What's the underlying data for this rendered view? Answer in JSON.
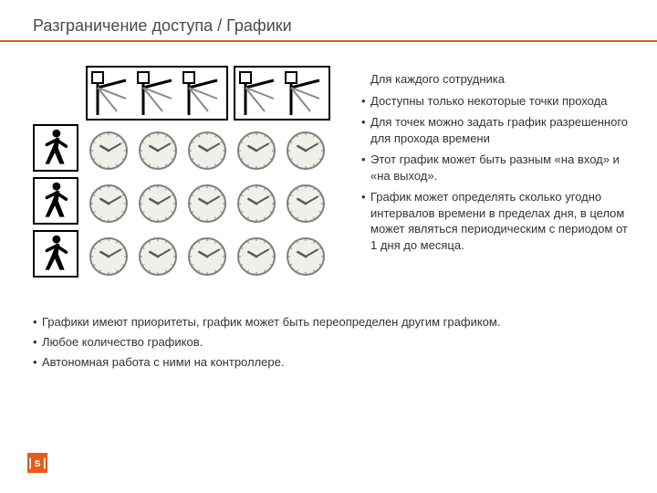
{
  "title": "Разграничение доступа / Графики",
  "accent_color": "#e85a1a",
  "logo_text": "|s|",
  "diagram": {
    "turnstile_groups": [
      3,
      2
    ],
    "pedestrian_rows": 3,
    "clock_cols": 5,
    "clock_rows": 3,
    "clock": {
      "face_fill": "#f0efe9",
      "rim_stroke": "#808080",
      "hand_color": "#5a5a5a",
      "hour_angle_deg": 300,
      "minute_angle_deg": 60
    },
    "turnstile_colors": {
      "stroke": "#000000",
      "fill": "#ffffff"
    },
    "pedestrian_colors": {
      "fill": "#000000"
    }
  },
  "right": {
    "lead": "Для каждого сотрудника",
    "bullets": [
      "Доступны только некоторые точки прохода",
      "Для точек можно задать график разрешенного для прохода времени",
      "Этот график может быть разным «на вход» и «на выход».",
      "График может определять сколько угодно интервалов времени в пределах дня, в целом может являться периодическим с периодом от 1 дня до месяца."
    ]
  },
  "bottom": {
    "bullets": [
      "Графики имеют приоритеты, график может быть переопределен другим графиком.",
      "Любое количество графиков.",
      "Автономная работа с ними на контроллере."
    ]
  }
}
